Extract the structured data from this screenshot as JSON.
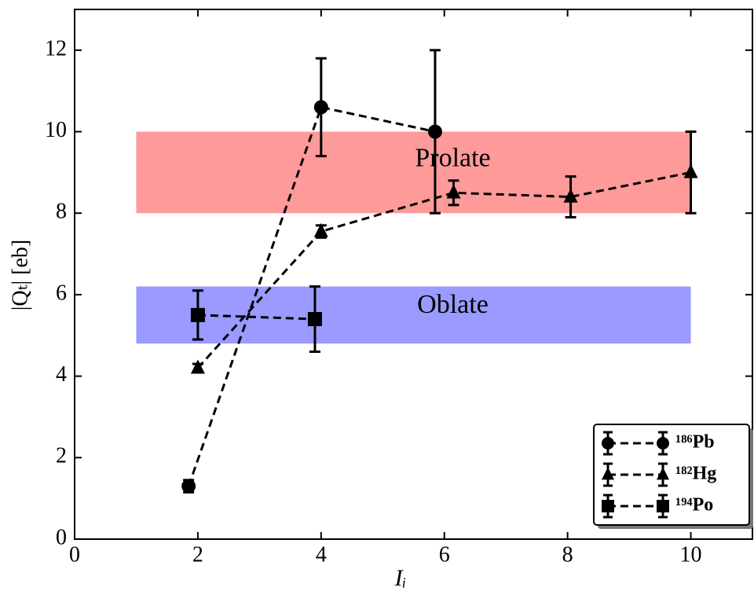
{
  "chart_data": {
    "type": "errorbar",
    "xlabel": "Iᵢ",
    "ylabel": "|Qₜ| [eb]",
    "xlim": [
      0,
      11
    ],
    "ylim": [
      0,
      13
    ],
    "xticks": [
      0,
      2,
      4,
      6,
      8,
      10
    ],
    "yticks": [
      0,
      2,
      4,
      6,
      8,
      10,
      12
    ],
    "grid": false,
    "legend": "lower right",
    "bands": [
      {
        "label": "Prolate",
        "x": [
          1,
          10
        ],
        "y": [
          8,
          10
        ],
        "color": "#ff9a9a"
      },
      {
        "label": "Oblate",
        "x": [
          1,
          10
        ],
        "y": [
          4.8,
          6.2
        ],
        "color": "#9a9aff"
      }
    ],
    "series": [
      {
        "name": "¹⁸⁶Pb",
        "color": "#000000",
        "marker": "circle",
        "x": [
          1.85,
          4.0,
          5.85
        ],
        "values": [
          1.3,
          10.6,
          10.0
        ],
        "errors": [
          0.15,
          1.2,
          2.0
        ]
      },
      {
        "name": "¹⁸²Hg",
        "color": "#000000",
        "marker": "triangle",
        "x": [
          2.0,
          4.0,
          6.15,
          8.05,
          10.0
        ],
        "values": [
          4.2,
          7.55,
          8.5,
          8.4,
          9.0
        ],
        "errors": [
          0.1,
          0.15,
          0.3,
          0.5,
          1.0
        ]
      },
      {
        "name": "¹⁹⁴Po",
        "color": "#000000",
        "marker": "square",
        "x": [
          2.0,
          3.9
        ],
        "values": [
          5.5,
          5.4
        ],
        "errors": [
          0.6,
          0.8
        ]
      }
    ]
  }
}
